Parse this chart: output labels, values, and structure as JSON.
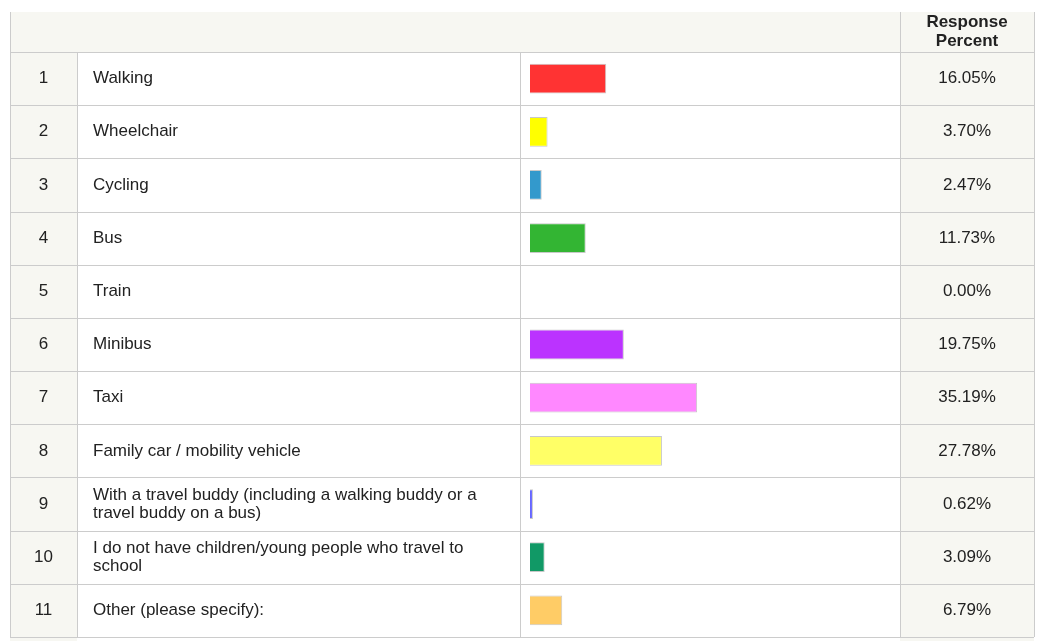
{
  "chart_data": {
    "type": "bar",
    "orientation": "horizontal",
    "categories": [
      "Walking",
      "Wheelchair",
      "Cycling",
      "Bus",
      "Train",
      "Minibus",
      "Taxi",
      "Family car / mobility vehicle",
      "With a travel buddy (including a walking buddy or a travel buddy on a bus)",
      "I do not have children/young people who travel to school",
      "Other (please specify)"
    ],
    "values": [
      16.05,
      3.7,
      2.47,
      11.73,
      0.0,
      19.75,
      35.19,
      27.78,
      0.62,
      3.09,
      6.79
    ],
    "value_labels": [
      "16.05%",
      "3.70%",
      "2.47%",
      "11.73%",
      "0.00%",
      "19.75%",
      "35.19%",
      "27.78%",
      "0.62%",
      "3.09%",
      "6.79%"
    ],
    "colors": [
      "#ff3333",
      "#ffff00",
      "#3399cc",
      "#33b533",
      null,
      "#bb33ff",
      "#ff88ff",
      "#ffff66",
      "#6666ff",
      "#119966",
      "#ffcc66"
    ],
    "annotations": [
      "Response Percent",
      "1",
      "2",
      "3",
      "4",
      "5",
      "6",
      "7",
      "8",
      "9",
      "10",
      "11",
      ":"
    ],
    "legend": false
  }
}
